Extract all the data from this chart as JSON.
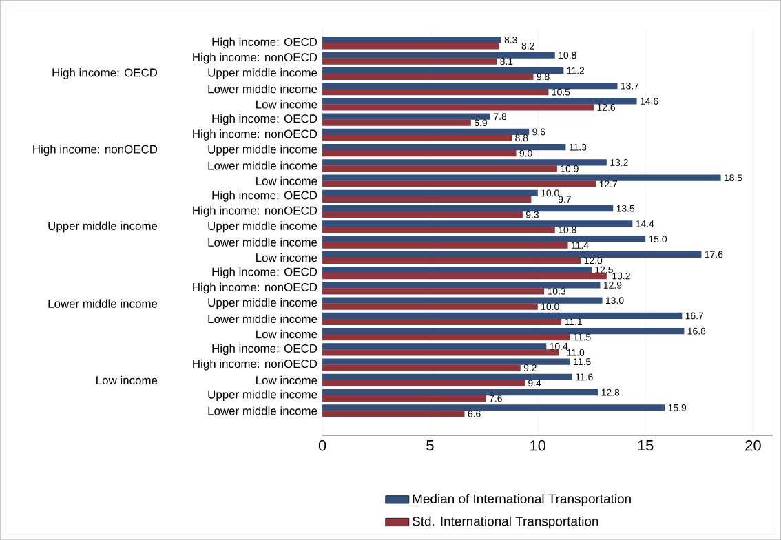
{
  "chart_data": {
    "type": "bar",
    "orientation": "horizontal",
    "categories": [
      "High income: OECD",
      "High income: nonOECD",
      "Upper middle income",
      "Lower middle income",
      "Low income",
      "High income: OECD",
      "High income: nonOECD",
      "Upper middle income",
      "Lower middle income",
      "Low income",
      "High income: OECD",
      "High income: nonOECD",
      "Upper middle income",
      "Lower middle income",
      "Low income",
      "High income: OECD",
      "High income: nonOECD",
      "Upper middle income",
      "Lower middle income",
      "Low income",
      "High income: OECD",
      "High income: nonOECD",
      "Low income",
      "Upper middle income",
      "Lower middle income"
    ],
    "series": [
      {
        "name": "Median of International Transportation",
        "color": "#34507a",
        "values": [
          8.3,
          10.8,
          11.2,
          13.7,
          14.6,
          7.8,
          9.6,
          11.3,
          13.2,
          18.5,
          10.0,
          13.5,
          14.4,
          15.0,
          17.6,
          12.5,
          12.9,
          13.0,
          16.7,
          16.8,
          10.4,
          11.5,
          11.6,
          12.8,
          15.9
        ],
        "value_labels": [
          "8.3",
          "10.8",
          "11.2",
          "13.7",
          "14.6",
          "7.8",
          "9.6",
          "11.3",
          "13.2",
          "18.5",
          "10.0",
          "13.5",
          "14.4",
          "15.0",
          "17.6",
          "12.5",
          "12.9",
          "13.0",
          "16.7",
          "16.8",
          "10.4",
          "11.5",
          "11.6",
          "12.8",
          "15.9"
        ]
      },
      {
        "name": "Std. International Transportation",
        "color": "#90353b",
        "values": [
          8.2,
          8.1,
          9.8,
          10.5,
          12.6,
          6.9,
          8.8,
          9.0,
          10.9,
          12.7,
          9.7,
          9.3,
          10.8,
          11.4,
          12.0,
          13.2,
          10.3,
          10.0,
          11.1,
          11.5,
          11.0,
          9.2,
          9.4,
          7.6,
          6.6
        ],
        "value_labels": [
          "8.2",
          "8.1",
          "9.8",
          "10.5",
          "12.6",
          "6.9",
          "8.8",
          "9.0",
          "10.9",
          "12.7",
          "9.7",
          "9.3",
          "10.8",
          "11.4",
          "12.0",
          "13.2",
          "10.3",
          "10.0",
          "11.1",
          "11.5",
          "11.0",
          "9.2",
          "9.4",
          "7.6",
          "6.6"
        ]
      }
    ],
    "annotations": [
      "High income: OECD",
      "High income: nonOECD",
      "Upper middle income",
      "Lower middle income",
      "Low income"
    ],
    "xlim": [
      0,
      20.9
    ],
    "xticks": [
      0,
      5,
      10,
      15,
      20
    ],
    "grid": "x",
    "legend": "bottom"
  }
}
